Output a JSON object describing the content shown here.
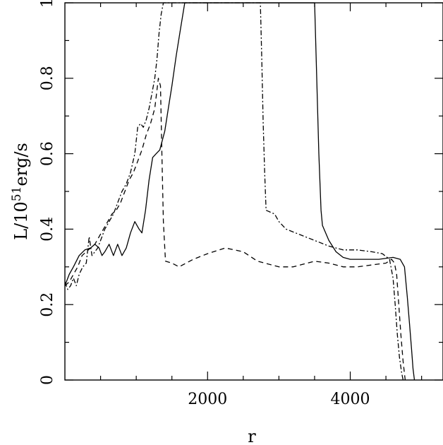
{
  "chart_data": {
    "type": "line",
    "title": "",
    "xlabel": "r",
    "ylabel": "L/10",
    "ylabel_exponent": "51",
    "ylabel_unit": "erg/s",
    "xlim": [
      0,
      5300
    ],
    "ylim": [
      0,
      1
    ],
    "x_ticks": [
      {
        "value": 2000,
        "label": "2000"
      },
      {
        "value": 4000,
        "label": "4000"
      }
    ],
    "x_minor_ticks": [
      500,
      1000,
      1500,
      2500,
      3000,
      3500,
      4500,
      5000
    ],
    "y_ticks": [
      {
        "value": 0,
        "label": "0"
      },
      {
        "value": 0.2,
        "label": "0.2"
      },
      {
        "value": 0.4,
        "label": "0.4"
      },
      {
        "value": 0.6,
        "label": "0.6"
      },
      {
        "value": 0.8,
        "label": "0.8"
      },
      {
        "value": 1,
        "label": "1"
      }
    ],
    "y_minor_ticks": [
      0.1,
      0.3,
      0.5,
      0.7,
      0.9
    ],
    "grid": false,
    "legend": "none",
    "series": [
      {
        "style": "solid",
        "points": [
          [
            0,
            0.25
          ],
          [
            60,
            0.28
          ],
          [
            120,
            0.3
          ],
          [
            200,
            0.33
          ],
          [
            280,
            0.345
          ],
          [
            360,
            0.35
          ],
          [
            420,
            0.36
          ],
          [
            480,
            0.35
          ],
          [
            520,
            0.33
          ],
          [
            560,
            0.34
          ],
          [
            620,
            0.36
          ],
          [
            680,
            0.33
          ],
          [
            740,
            0.36
          ],
          [
            800,
            0.33
          ],
          [
            860,
            0.35
          ],
          [
            920,
            0.39
          ],
          [
            980,
            0.42
          ],
          [
            1040,
            0.4
          ],
          [
            1080,
            0.39
          ],
          [
            1130,
            0.45
          ],
          [
            1180,
            0.53
          ],
          [
            1230,
            0.59
          ],
          [
            1280,
            0.6
          ],
          [
            1330,
            0.61
          ],
          [
            1400,
            0.66
          ],
          [
            1450,
            0.72
          ],
          [
            1500,
            0.78
          ],
          [
            1560,
            0.86
          ],
          [
            1620,
            0.93
          ],
          [
            1680,
            1.0
          ],
          [
            3500,
            1.0
          ],
          [
            3530,
            0.8
          ],
          [
            3560,
            0.6
          ],
          [
            3590,
            0.45
          ],
          [
            3610,
            0.41
          ],
          [
            3700,
            0.37
          ],
          [
            3800,
            0.34
          ],
          [
            3900,
            0.325
          ],
          [
            4000,
            0.32
          ],
          [
            4400,
            0.32
          ],
          [
            4600,
            0.325
          ],
          [
            4700,
            0.32
          ],
          [
            4760,
            0.3
          ],
          [
            4800,
            0.22
          ],
          [
            4830,
            0.15
          ],
          [
            4860,
            0.08
          ],
          [
            4880,
            0.03
          ],
          [
            4900,
            0.0
          ]
        ]
      },
      {
        "style": "dashed",
        "points": [
          [
            0,
            0.25
          ],
          [
            60,
            0.26
          ],
          [
            120,
            0.28
          ],
          [
            180,
            0.3
          ],
          [
            240,
            0.33
          ],
          [
            300,
            0.34
          ],
          [
            360,
            0.35
          ],
          [
            420,
            0.36
          ],
          [
            480,
            0.38
          ],
          [
            540,
            0.4
          ],
          [
            600,
            0.42
          ],
          [
            660,
            0.44
          ],
          [
            720,
            0.45
          ],
          [
            780,
            0.47
          ],
          [
            840,
            0.5
          ],
          [
            900,
            0.53
          ],
          [
            960,
            0.55
          ],
          [
            1020,
            0.58
          ],
          [
            1080,
            0.61
          ],
          [
            1140,
            0.65
          ],
          [
            1200,
            0.68
          ],
          [
            1260,
            0.72
          ],
          [
            1310,
            0.8
          ],
          [
            1340,
            0.78
          ],
          [
            1360,
            0.6
          ],
          [
            1380,
            0.42
          ],
          [
            1410,
            0.315
          ],
          [
            1500,
            0.31
          ],
          [
            1600,
            0.3
          ],
          [
            1800,
            0.32
          ],
          [
            2000,
            0.335
          ],
          [
            2250,
            0.35
          ],
          [
            2500,
            0.34
          ],
          [
            2700,
            0.315
          ],
          [
            3000,
            0.3
          ],
          [
            3200,
            0.3
          ],
          [
            3500,
            0.315
          ],
          [
            3700,
            0.31
          ],
          [
            3900,
            0.3
          ],
          [
            4100,
            0.3
          ],
          [
            4300,
            0.305
          ],
          [
            4500,
            0.31
          ],
          [
            4580,
            0.32
          ],
          [
            4620,
            0.31
          ],
          [
            4650,
            0.28
          ],
          [
            4680,
            0.2
          ],
          [
            4710,
            0.12
          ],
          [
            4740,
            0.05
          ],
          [
            4770,
            0.0
          ]
        ]
      },
      {
        "style": "dashdot",
        "points": [
          [
            0,
            0.26
          ],
          [
            40,
            0.24
          ],
          [
            80,
            0.25
          ],
          [
            120,
            0.27
          ],
          [
            160,
            0.25
          ],
          [
            200,
            0.28
          ],
          [
            250,
            0.3
          ],
          [
            300,
            0.31
          ],
          [
            340,
            0.38
          ],
          [
            380,
            0.33
          ],
          [
            420,
            0.34
          ],
          [
            460,
            0.35
          ],
          [
            500,
            0.37
          ],
          [
            560,
            0.4
          ],
          [
            620,
            0.42
          ],
          [
            680,
            0.44
          ],
          [
            740,
            0.47
          ],
          [
            800,
            0.5
          ],
          [
            860,
            0.52
          ],
          [
            920,
            0.55
          ],
          [
            980,
            0.6
          ],
          [
            1020,
            0.67
          ],
          [
            1060,
            0.68
          ],
          [
            1100,
            0.67
          ],
          [
            1140,
            0.69
          ],
          [
            1180,
            0.72
          ],
          [
            1220,
            0.76
          ],
          [
            1260,
            0.8
          ],
          [
            1290,
            0.85
          ],
          [
            1320,
            0.92
          ],
          [
            1350,
            0.97
          ],
          [
            1380,
            1.0
          ],
          [
            2740,
            1.0
          ],
          [
            2760,
            0.85
          ],
          [
            2780,
            0.68
          ],
          [
            2800,
            0.55
          ],
          [
            2820,
            0.45
          ],
          [
            2880,
            0.445
          ],
          [
            2940,
            0.44
          ],
          [
            3000,
            0.42
          ],
          [
            3100,
            0.4
          ],
          [
            3300,
            0.385
          ],
          [
            3500,
            0.37
          ],
          [
            3700,
            0.355
          ],
          [
            3900,
            0.345
          ],
          [
            4100,
            0.345
          ],
          [
            4300,
            0.34
          ],
          [
            4450,
            0.335
          ],
          [
            4550,
            0.32
          ],
          [
            4600,
            0.27
          ],
          [
            4630,
            0.2
          ],
          [
            4660,
            0.12
          ],
          [
            4690,
            0.06
          ],
          [
            4720,
            0.02
          ],
          [
            4740,
            0.0
          ]
        ]
      }
    ]
  }
}
